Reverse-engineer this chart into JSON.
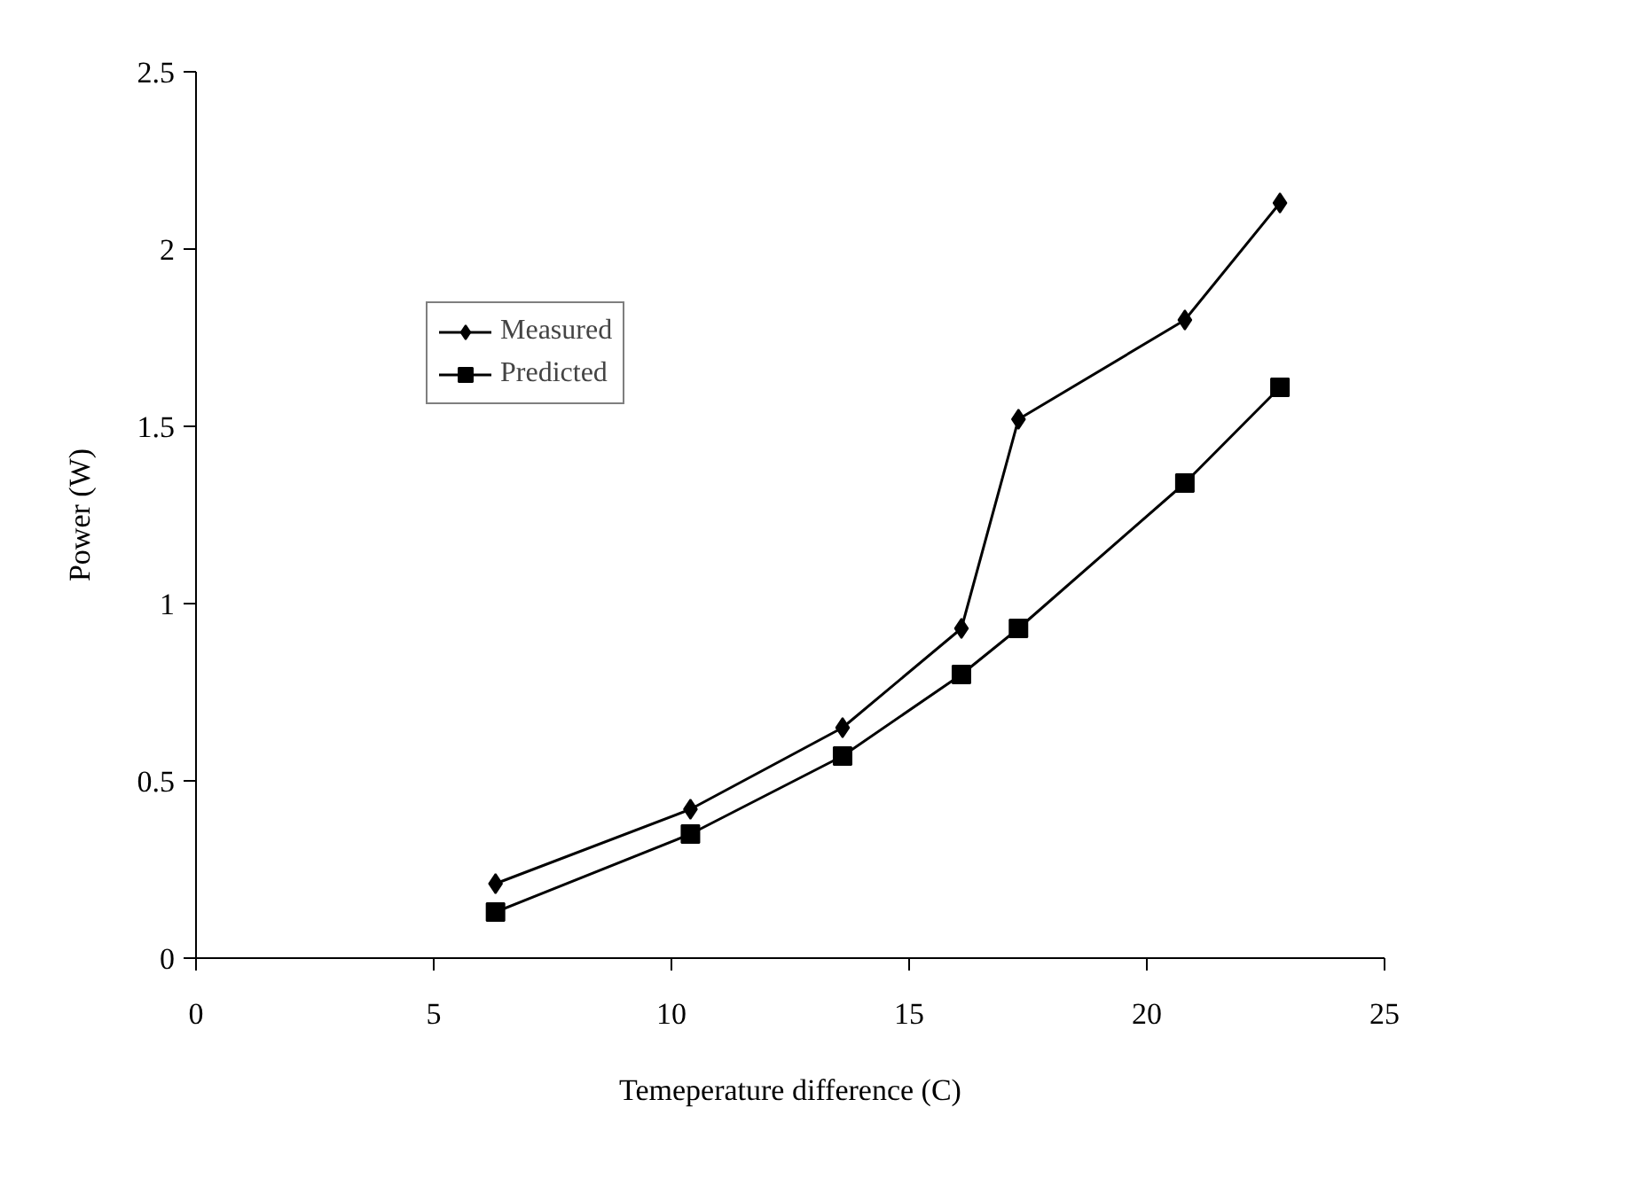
{
  "chart_data": {
    "type": "line",
    "xlabel": "Temeperature difference (C)",
    "ylabel": "Power (W)",
    "xlim": [
      0,
      25
    ],
    "xticks": [
      0,
      5,
      10,
      15,
      20,
      25
    ],
    "ylim": [
      0,
      2.5
    ],
    "yticks": [
      0,
      {
        "value": 0.5,
        "label": "0.5"
      },
      1,
      {
        "value": 1.5,
        "label": "1.5"
      },
      2,
      {
        "value": 2.5,
        "label": "2.5"
      }
    ],
    "x": [
      6.3,
      10.4,
      13.6,
      16.1,
      17.3,
      20.8,
      22.8
    ],
    "series": [
      {
        "name": "Measured",
        "color": "#000000",
        "marker": "diamond",
        "values": [
          0.21,
          0.42,
          0.65,
          0.93,
          1.52,
          1.8,
          2.13
        ]
      },
      {
        "name": "Predicted",
        "color": "#000000",
        "marker": "square",
        "values": [
          0.13,
          0.35,
          0.57,
          0.8,
          0.93,
          1.34,
          1.61
        ]
      }
    ],
    "grid": false,
    "legend": "top left",
    "line_style": "solid"
  }
}
